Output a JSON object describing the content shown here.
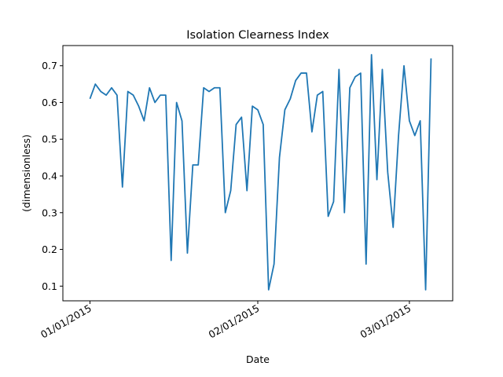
{
  "chart_data": {
    "type": "line",
    "title": "Isolation Clearness Index",
    "xlabel": "Date",
    "ylabel": "(dimensionless)",
    "x_tick_labels": [
      "01/01/2015",
      "02/01/2015",
      "03/01/2015"
    ],
    "y_ticks": [
      0.1,
      0.2,
      0.3,
      0.4,
      0.5,
      0.6,
      0.7
    ],
    "ylim": [
      0.06,
      0.755
    ],
    "xlim": [
      "12/27/2014",
      "03/09/2015"
    ],
    "grid": false,
    "line_color": "#1f77b4",
    "series": [
      {
        "x": [
          "01/01/2015",
          "01/02/2015",
          "01/03/2015",
          "01/04/2015",
          "01/05/2015",
          "01/06/2015",
          "01/07/2015",
          "01/08/2015",
          "01/09/2015",
          "01/10/2015",
          "01/11/2015",
          "01/12/2015",
          "01/13/2015",
          "01/14/2015",
          "01/15/2015",
          "01/16/2015",
          "01/17/2015",
          "01/18/2015",
          "01/19/2015",
          "01/20/2015",
          "01/21/2015",
          "01/22/2015",
          "01/23/2015",
          "01/24/2015",
          "01/25/2015",
          "01/26/2015",
          "01/27/2015",
          "01/28/2015",
          "01/29/2015",
          "01/30/2015",
          "01/31/2015",
          "02/01/2015",
          "02/02/2015",
          "02/03/2015",
          "02/04/2015",
          "02/05/2015",
          "02/06/2015",
          "02/07/2015",
          "02/08/2015",
          "02/09/2015",
          "02/10/2015",
          "02/11/2015",
          "02/12/2015",
          "02/13/2015",
          "02/14/2015",
          "02/15/2015",
          "02/16/2015",
          "02/17/2015",
          "02/18/2015",
          "02/19/2015",
          "02/20/2015",
          "02/21/2015",
          "02/22/2015",
          "02/23/2015",
          "02/24/2015",
          "02/25/2015",
          "02/26/2015",
          "02/27/2015",
          "02/28/2015",
          "03/01/2015",
          "03/02/2015",
          "03/03/2015",
          "03/04/2015",
          "03/05/2015"
        ],
        "values": [
          0.61,
          0.65,
          0.63,
          0.62,
          0.64,
          0.62,
          0.37,
          0.63,
          0.62,
          0.59,
          0.55,
          0.64,
          0.6,
          0.62,
          0.62,
          0.17,
          0.6,
          0.55,
          0.19,
          0.43,
          0.43,
          0.64,
          0.63,
          0.64,
          0.64,
          0.3,
          0.36,
          0.54,
          0.56,
          0.36,
          0.59,
          0.58,
          0.54,
          0.09,
          0.16,
          0.45,
          0.58,
          0.61,
          0.66,
          0.68,
          0.68,
          0.52,
          0.62,
          0.63,
          0.29,
          0.33,
          0.69,
          0.3,
          0.64,
          0.67,
          0.68,
          0.16,
          0.73,
          0.39,
          0.69,
          0.41,
          0.26,
          0.51,
          0.7,
          0.55,
          0.51,
          0.55,
          0.09,
          0.72
        ]
      }
    ]
  }
}
